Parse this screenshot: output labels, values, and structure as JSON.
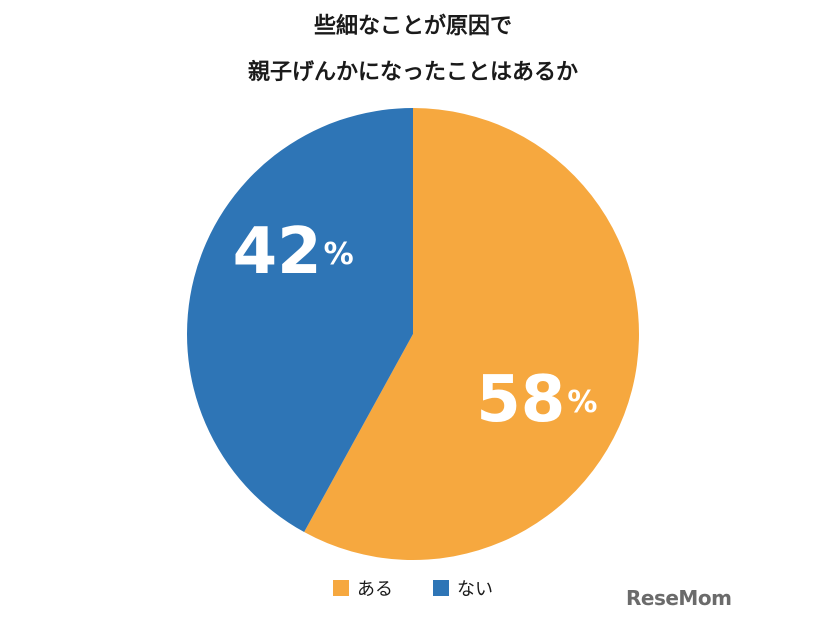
{
  "title": {
    "line1": "些細なことが原因で",
    "line2": "親子げんかになったことはあるか"
  },
  "colors": {
    "aru": "#F6A83F",
    "nai": "#2E75B6"
  },
  "chart_data": {
    "type": "pie",
    "start": "12 o'clock",
    "direction": "clockwise",
    "slices": [
      {
        "label": "ある",
        "value": 58,
        "display": "58",
        "unit": "%",
        "color": "#F6A83F"
      },
      {
        "label": "ない",
        "value": 42,
        "display": "42",
        "unit": "%",
        "color": "#2E75B6"
      }
    ],
    "legend": {
      "position": "bottom-center",
      "items": [
        "ある",
        "ない"
      ]
    }
  },
  "brand": {
    "logo_text": "ReseMom"
  }
}
